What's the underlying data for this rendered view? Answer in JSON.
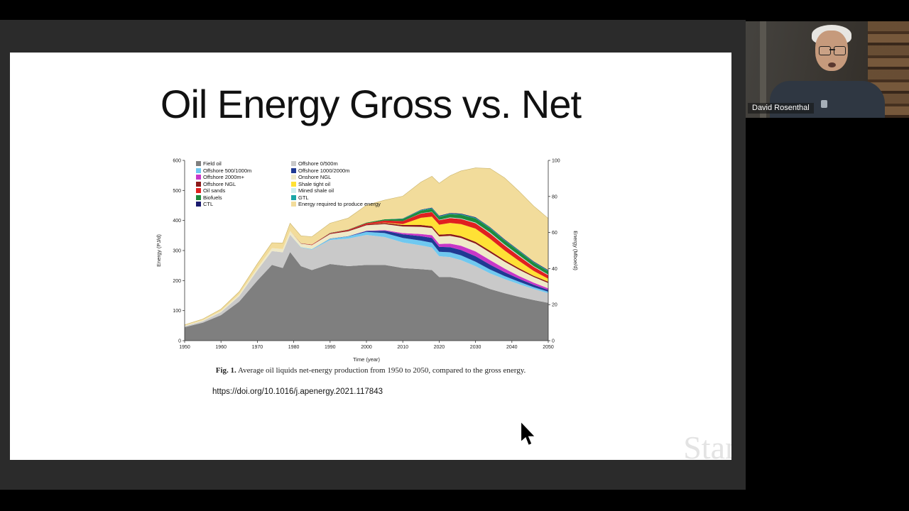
{
  "meeting": {
    "participant_name": "David Rosenthal"
  },
  "slide": {
    "title": "Oil Energy Gross vs. Net",
    "figure_caption_label": "Fig. 1.",
    "figure_caption": "Average oil liquids net-energy production from 1950 to 2050, compared to the gross energy.",
    "doi_text": "https://doi.org/10.1016/j.apenergy.2021.117843",
    "watermark_text": "Stan"
  },
  "chart_data": {
    "type": "area",
    "stacked": true,
    "title": "",
    "xlabel": "Time (year)",
    "ylabel_left": "Energy (PJ/d)",
    "ylabel_right": "Energy (Mboe/d)",
    "xlim": [
      1950,
      2050
    ],
    "ylim_left": [
      0,
      600
    ],
    "ylim_right": [
      0,
      100
    ],
    "xticks": [
      1950,
      1960,
      1970,
      1980,
      1990,
      2000,
      2010,
      2020,
      2030,
      2040,
      2050
    ],
    "yticks_left": [
      0,
      100,
      200,
      300,
      400,
      500,
      600
    ],
    "yticks_right": [
      0,
      20,
      40,
      60,
      80,
      100
    ],
    "legend_position": "upper-left-two-columns",
    "x": [
      1950,
      1955,
      1960,
      1965,
      1970,
      1974,
      1977,
      1979,
      1982,
      1985,
      1990,
      1995,
      2000,
      2005,
      2010,
      2015,
      2018,
      2020,
      2023,
      2026,
      2030,
      2034,
      2038,
      2042,
      2046,
      2050
    ],
    "series": [
      {
        "name": "Field oil",
        "color": "#7f7f7f",
        "values": [
          45,
          60,
          85,
          130,
          200,
          252,
          242,
          295,
          248,
          235,
          255,
          248,
          252,
          252,
          242,
          238,
          235,
          212,
          212,
          205,
          190,
          172,
          158,
          146,
          135,
          126
        ]
      },
      {
        "name": "Offshore 0/500m",
        "color": "#c9c9c9",
        "values": [
          3,
          5,
          10,
          18,
          34,
          46,
          52,
          58,
          62,
          68,
          80,
          92,
          100,
          93,
          85,
          79,
          75,
          69,
          66,
          63,
          58,
          52,
          47,
          42,
          37,
          32
        ]
      },
      {
        "name": "Offshore 500/1000m",
        "color": "#6fc8f0",
        "values": [
          0,
          0,
          0,
          0,
          0,
          0,
          0,
          0,
          1,
          2,
          4,
          7,
          10,
          13,
          15,
          16,
          16,
          15,
          16,
          16,
          15,
          13,
          10,
          8,
          6,
          5
        ]
      },
      {
        "name": "Offshore 1000/2000m",
        "color": "#1f3a93",
        "values": [
          0,
          0,
          0,
          0,
          0,
          0,
          0,
          0,
          0,
          0,
          1,
          1,
          3,
          8,
          12,
          15,
          16,
          16,
          17,
          18,
          18,
          16,
          13,
          10,
          8,
          6
        ]
      },
      {
        "name": "Offshore 2000m+",
        "color": "#c837c8",
        "values": [
          0,
          0,
          0,
          0,
          0,
          0,
          0,
          0,
          0,
          0,
          0,
          0,
          1,
          2,
          4,
          7,
          9,
          10,
          12,
          14,
          16,
          15,
          12,
          9,
          7,
          5
        ]
      },
      {
        "name": "Onshore NGL",
        "color": "#efe9c8",
        "values": [
          2,
          3,
          4,
          6,
          8,
          10,
          11,
          12,
          12,
          13,
          15,
          16,
          18,
          20,
          22,
          24,
          24,
          25,
          26,
          26,
          26,
          25,
          23,
          21,
          19,
          18
        ]
      },
      {
        "name": "Offshore NGL",
        "color": "#8b1a1a",
        "values": [
          0,
          0,
          0,
          0,
          0,
          0,
          0,
          0,
          1,
          1,
          2,
          3,
          3,
          4,
          5,
          6,
          6,
          6,
          6,
          6,
          6,
          6,
          5,
          5,
          4,
          4
        ]
      },
      {
        "name": "Shale tight oil",
        "color": "#ffe135",
        "values": [
          0,
          0,
          0,
          0,
          0,
          0,
          0,
          0,
          0,
          0,
          0,
          0,
          0,
          1,
          3,
          24,
          32,
          33,
          37,
          40,
          44,
          40,
          32,
          24,
          16,
          10
        ]
      },
      {
        "name": "Oil sands",
        "color": "#e02020",
        "values": [
          0,
          0,
          0,
          0,
          0,
          0,
          0,
          0,
          0,
          1,
          1,
          2,
          4,
          7,
          10,
          14,
          15,
          15,
          16,
          17,
          18,
          18,
          17,
          16,
          14,
          12
        ]
      },
      {
        "name": "Mined shale oil",
        "color": "#cfeeee",
        "values": [
          0,
          0,
          0,
          0,
          0,
          0,
          0,
          0,
          0,
          0,
          0,
          0,
          0,
          0,
          0,
          1,
          1,
          1,
          2,
          2,
          2,
          3,
          3,
          3,
          2,
          2
        ]
      },
      {
        "name": "Biofuels",
        "color": "#1e8a3c",
        "values": [
          0,
          0,
          0,
          0,
          0,
          0,
          0,
          0,
          0,
          0,
          1,
          1,
          2,
          4,
          7,
          9,
          10,
          10,
          11,
          12,
          14,
          14,
          13,
          13,
          12,
          11
        ]
      },
      {
        "name": "GTL",
        "color": "#19a6a6",
        "values": [
          0,
          0,
          0,
          0,
          0,
          0,
          0,
          0,
          0,
          0,
          0,
          0,
          0,
          0,
          1,
          2,
          2,
          2,
          2,
          2,
          2,
          2,
          2,
          2,
          2,
          2
        ]
      },
      {
        "name": "CTL",
        "color": "#1a1a6e",
        "values": [
          0,
          0,
          0,
          0,
          0,
          0,
          0,
          0,
          0,
          0,
          0,
          0,
          0,
          0,
          1,
          1,
          2,
          2,
          2,
          2,
          2,
          2,
          2,
          2,
          2,
          2
        ]
      },
      {
        "name": "Energy required to produce energy",
        "color": "#f2dc9b",
        "values": [
          3,
          4,
          6,
          9,
          14,
          18,
          20,
          26,
          25,
          26,
          32,
          38,
          58,
          64,
          74,
          92,
          104,
          108,
          124,
          142,
          164,
          195,
          205,
          196,
          184,
          172
        ]
      }
    ],
    "legend_display_order": [
      "Field oil",
      "Offshore 0/500m",
      "Offshore 500/1000m",
      "Offshore 1000/2000m",
      "Offshore 2000m+",
      "Onshore NGL",
      "Offshore NGL",
      "Shale tight oil",
      "Oil sands",
      "Mined shale oil",
      "Biofuels",
      "GTL",
      "CTL",
      "Energy required to produce energy"
    ]
  }
}
